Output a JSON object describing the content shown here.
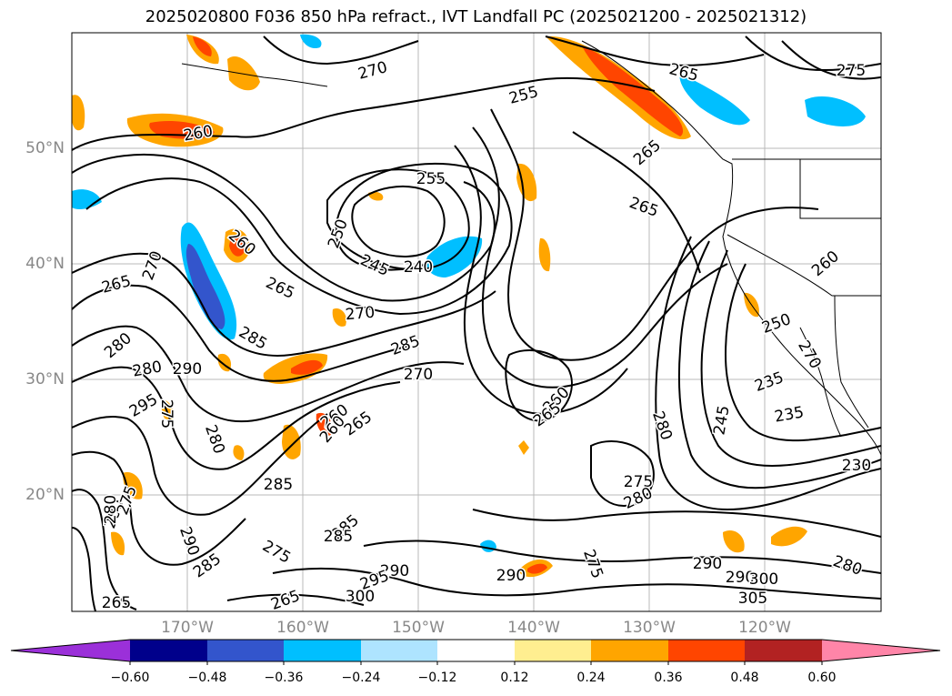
{
  "title": "2025020800 F036 850 hPa refract., IVT Landfall PC (2025021200 - 2025021312)",
  "map": {
    "lat_labels": [
      "50°N",
      "40°N",
      "30°N",
      "20°N"
    ],
    "lon_labels": [
      "170°W",
      "160°W",
      "150°W",
      "140°W",
      "130°W",
      "120°W"
    ],
    "grid": true,
    "contour_labels": [
      {
        "text": "260"
      },
      {
        "text": "255"
      },
      {
        "text": "265"
      },
      {
        "text": "275"
      },
      {
        "text": "270"
      },
      {
        "text": "265"
      },
      {
        "text": "255"
      },
      {
        "text": "265"
      },
      {
        "text": "250"
      },
      {
        "text": "260"
      },
      {
        "text": "265"
      },
      {
        "text": "270"
      },
      {
        "text": "245"
      },
      {
        "text": "240"
      },
      {
        "text": "265"
      },
      {
        "text": "270"
      },
      {
        "text": "260"
      },
      {
        "text": "285"
      },
      {
        "text": "285"
      },
      {
        "text": "280"
      },
      {
        "text": "290"
      },
      {
        "text": "270"
      },
      {
        "text": "250"
      },
      {
        "text": "270"
      },
      {
        "text": "280"
      },
      {
        "text": "295"
      },
      {
        "text": "275"
      },
      {
        "text": "260"
      },
      {
        "text": "265"
      },
      {
        "text": "235"
      },
      {
        "text": "235"
      },
      {
        "text": "245"
      },
      {
        "text": "280"
      },
      {
        "text": "260"
      },
      {
        "text": "265"
      },
      {
        "text": "260"
      },
      {
        "text": "280"
      },
      {
        "text": "275"
      },
      {
        "text": "280"
      },
      {
        "text": "230"
      },
      {
        "text": "285"
      },
      {
        "text": "280"
      },
      {
        "text": "275"
      },
      {
        "text": "290"
      },
      {
        "text": "285"
      },
      {
        "text": "275"
      },
      {
        "text": "285"
      },
      {
        "text": "290"
      },
      {
        "text": "295"
      },
      {
        "text": "275"
      },
      {
        "text": "290"
      },
      {
        "text": "265"
      },
      {
        "text": "265"
      },
      {
        "text": "300"
      },
      {
        "text": "290"
      },
      {
        "text": "290"
      },
      {
        "text": "300"
      },
      {
        "text": "305"
      },
      {
        "text": "280"
      },
      {
        "text": "280"
      },
      {
        "text": "285"
      }
    ]
  },
  "colorbar": {
    "ticks": [
      "−0.60",
      "−0.48",
      "−0.36",
      "−0.24",
      "−0.12",
      "0.12",
      "0.24",
      "0.36",
      "0.48",
      "0.60"
    ],
    "colors": [
      "#9b30d9",
      "#2e8b57",
      "#00008b",
      "#3355cc",
      "#00bfff",
      "#aee4ff",
      "#ffffff",
      "#ffee90",
      "#ffa500",
      "#ff4500",
      "#b22222",
      "#ff85a8"
    ]
  }
}
